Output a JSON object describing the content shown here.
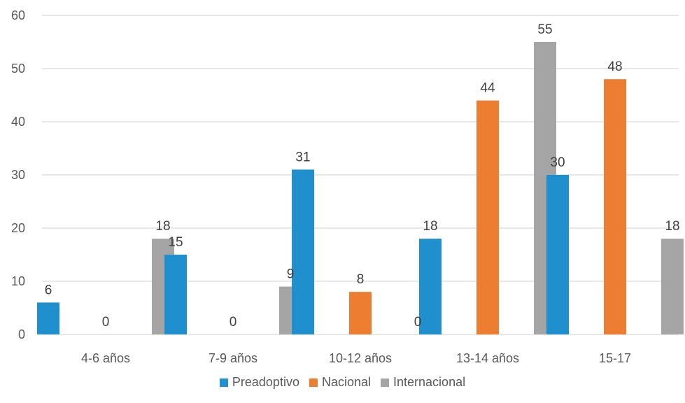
{
  "chart_data": {
    "type": "bar",
    "title": "",
    "xlabel": "",
    "ylabel": "",
    "categories": [
      "4-6 años",
      "7-9 años",
      "10-12 años",
      "13-14 años",
      "15-17"
    ],
    "ylim": [
      0,
      60
    ],
    "yticks": [
      0,
      10,
      20,
      30,
      40,
      50,
      60
    ],
    "grid": true,
    "legend_position": "bottom",
    "data_labels": true,
    "series": [
      {
        "name": "Preadoptivo",
        "color": "#1f8fce",
        "values": [
          6,
          15,
          31,
          18,
          30
        ]
      },
      {
        "name": "Nacional",
        "color": "#ed7d31",
        "values": [
          0,
          0,
          8,
          44,
          48
        ]
      },
      {
        "name": "Internacional",
        "color": "#a5a5a5",
        "values": [
          18,
          9,
          0,
          55,
          18
        ]
      }
    ]
  }
}
